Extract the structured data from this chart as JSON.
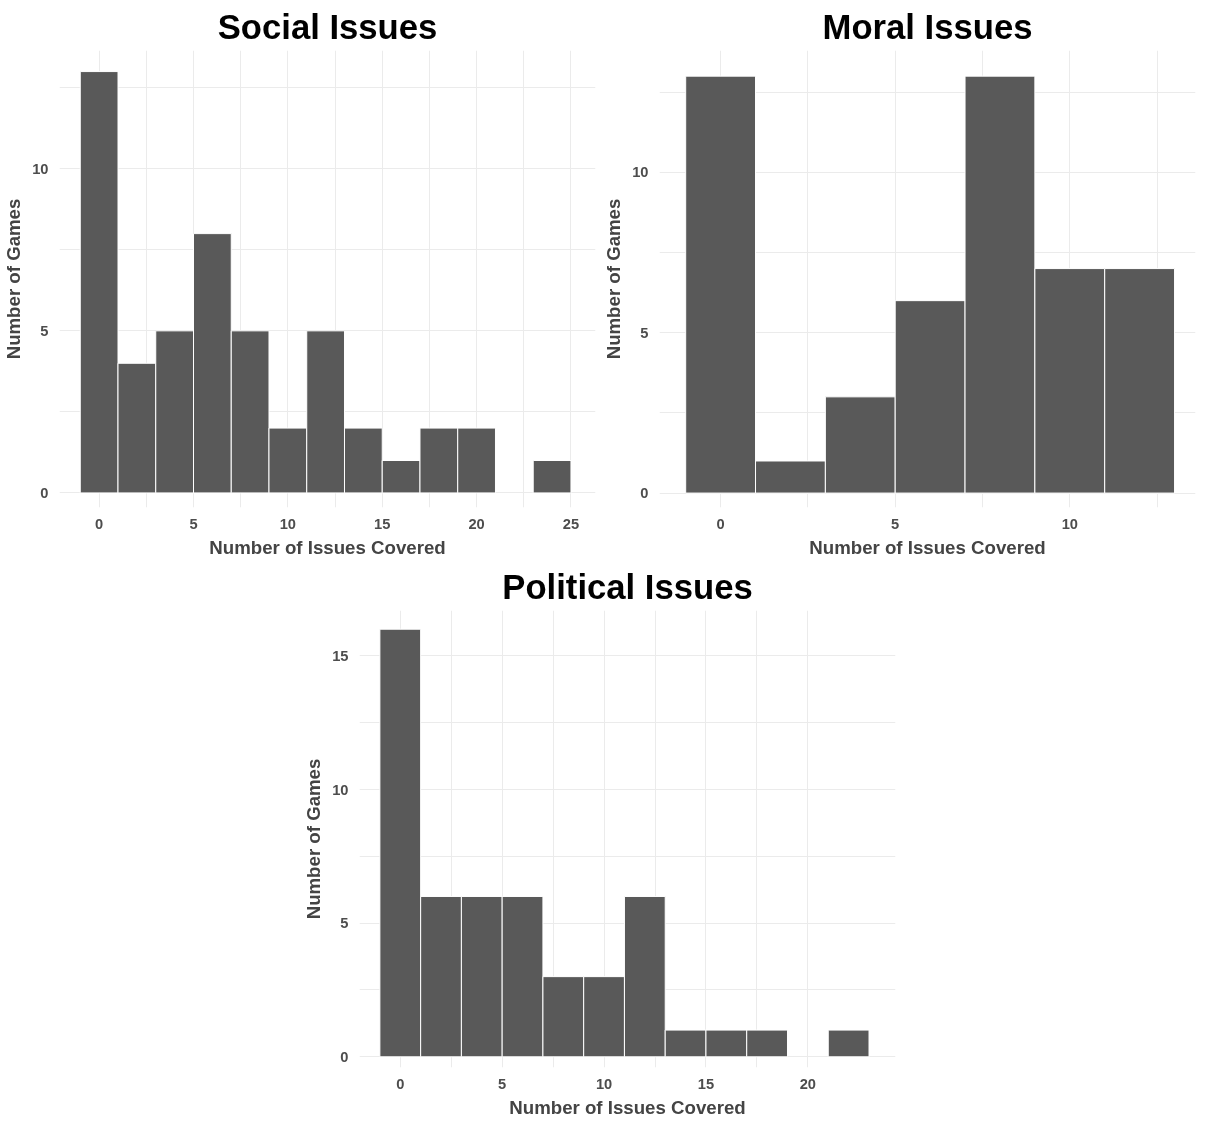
{
  "chart_data": [
    {
      "type": "histogram",
      "title": "Social Issues",
      "xlabel": "Number of Issues Covered",
      "ylabel": "Number of Games",
      "color": "#595959",
      "grid": true,
      "bins": [
        -1,
        1,
        3,
        5,
        7,
        9,
        11,
        13,
        15,
        17,
        19,
        21,
        23,
        25
      ],
      "values": [
        13,
        4,
        5,
        8,
        5,
        2,
        5,
        2,
        1,
        2,
        2,
        0,
        1
      ],
      "xlim": [
        -2.1,
        26.3
      ],
      "ylim": [
        -0.45,
        13.65
      ],
      "xticks": [
        0,
        {
          "value": 2.5,
          "label": null
        },
        5,
        {
          "value": 7.5,
          "label": null
        },
        10,
        {
          "value": 12.5,
          "label": null
        },
        15,
        {
          "value": 17.5,
          "label": null
        },
        20,
        {
          "value": 22.5,
          "label": null
        },
        25
      ],
      "yticks": [
        0,
        {
          "value": 2.5,
          "label": null
        },
        5,
        {
          "value": 7.5,
          "label": null
        },
        10,
        {
          "value": 12.5,
          "label": null
        }
      ]
    },
    {
      "type": "histogram",
      "title": "Moral Issues",
      "xlabel": "Number of Issues Covered",
      "ylabel": "Number of Games",
      "color": "#595959",
      "grid": true,
      "bins": [
        -1,
        1,
        3,
        5,
        7,
        9,
        11,
        13
      ],
      "values": [
        13,
        1,
        3,
        6,
        13,
        7,
        7
      ],
      "xlim": [
        -1.75,
        13.6
      ],
      "ylim": [
        -0.45,
        13.8
      ],
      "xticks": [
        0,
        {
          "value": 2.5,
          "label": null
        },
        5,
        {
          "value": 7.5,
          "label": null
        },
        10,
        {
          "value": 12.5,
          "label": null
        }
      ],
      "yticks": [
        0,
        {
          "value": 2.5,
          "label": null
        },
        5,
        {
          "value": 7.5,
          "label": null
        },
        10,
        {
          "value": 12.5,
          "label": null
        }
      ]
    },
    {
      "type": "histogram",
      "title": "Political Issues",
      "xlabel": "Number of Issues Covered",
      "ylabel": "Number of Games",
      "color": "#595959",
      "grid": true,
      "bins": [
        -1,
        1,
        3,
        5,
        7,
        9,
        11,
        13,
        15,
        17,
        19,
        21,
        23
      ],
      "values": [
        16,
        6,
        6,
        6,
        3,
        3,
        6,
        1,
        1,
        1,
        0,
        1
      ],
      "xlim": [
        -2,
        24.3
      ],
      "ylim": [
        -0.4,
        16.7
      ],
      "xticks": [
        0,
        {
          "value": 2.5,
          "label": null
        },
        5,
        {
          "value": 7.5,
          "label": null
        },
        10,
        {
          "value": 12.5,
          "label": null
        },
        15,
        {
          "value": 17.5,
          "label": null
        },
        20
      ],
      "yticks": [
        0,
        {
          "value": 2.5,
          "label": null
        },
        5,
        {
          "value": 7.5,
          "label": null
        },
        10,
        {
          "value": 12.5,
          "label": null
        },
        15
      ]
    }
  ]
}
